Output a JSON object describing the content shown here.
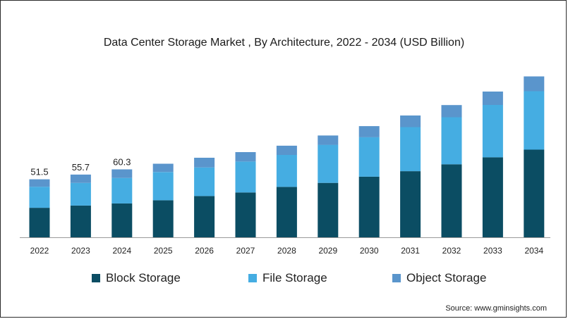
{
  "chart_data": {
    "type": "bar",
    "stacked": true,
    "title": "Data Center Storage Market , By Architecture, 2022 - 2034 (USD Billion)",
    "xlabel": "",
    "ylabel": "",
    "categories": [
      "2022",
      "2023",
      "2024",
      "2025",
      "2026",
      "2027",
      "2028",
      "2029",
      "2030",
      "2031",
      "2032",
      "2033",
      "2034"
    ],
    "series": [
      {
        "name": "Block Storage",
        "color": "#0b4d63",
        "values": [
          26.2,
          28.2,
          30.1,
          32.9,
          36.6,
          39.8,
          44.7,
          48.3,
          53.8,
          58.7,
          64.8,
          71.0,
          77.8
        ]
      },
      {
        "name": "File Storage",
        "color": "#45ade2",
        "values": [
          18.7,
          20.1,
          22.6,
          25.0,
          25.4,
          27.4,
          28.4,
          33.8,
          35.0,
          39.1,
          41.8,
          46.5,
          51.9
        ]
      },
      {
        "name": "Object Storage",
        "color": "#5a95cc",
        "values": [
          6.6,
          7.4,
          7.6,
          7.4,
          8.6,
          8.4,
          8.2,
          8.3,
          9.9,
          10.3,
          10.8,
          11.9,
          13.1
        ]
      }
    ],
    "totals_labeled": {
      "2022": "51.5",
      "2023": "55.7",
      "2024": "60.3"
    },
    "ylim": [
      0,
      160
    ],
    "grid": false,
    "legend_position": "bottom"
  },
  "source": "Source: www.gminsights.com"
}
